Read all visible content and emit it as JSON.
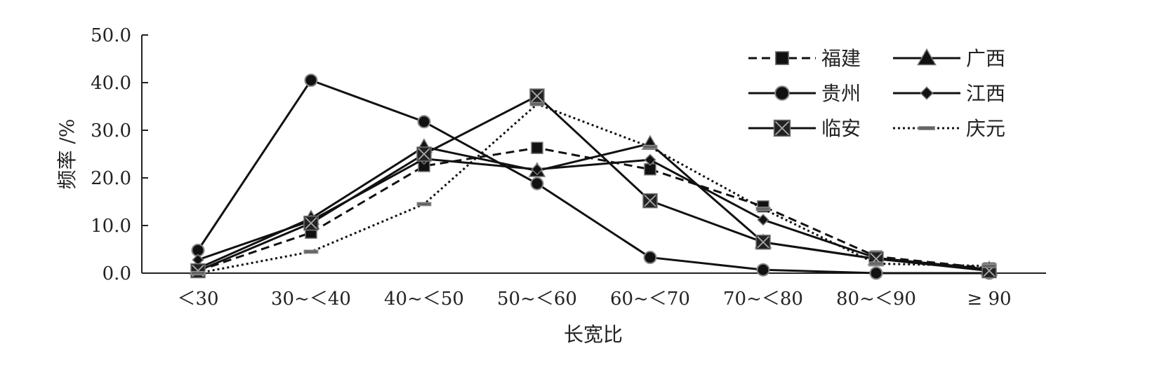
{
  "chart_data": {
    "type": "line",
    "title": "",
    "xlabel": "长宽比",
    "ylabel": "频率 /%",
    "categories": [
      "＜30",
      "30~＜40",
      "40~＜50",
      "50~＜60",
      "60~＜70",
      "70~＜80",
      "80~＜90",
      "≥ 90"
    ],
    "y_ticks": [
      "0.0",
      "10.0",
      "20.0",
      "30.0",
      "40.0",
      "50.0"
    ],
    "ylim": [
      0,
      50
    ],
    "grid": false,
    "legend_position": "top-right",
    "series": [
      {
        "name": "福建",
        "line": "dashed",
        "marker": "square",
        "values": [
          0.5,
          8.5,
          22.5,
          26.3,
          21.8,
          14.0,
          3.5,
          1.0
        ]
      },
      {
        "name": "广西",
        "line": "solid",
        "marker": "triangle",
        "values": [
          1.0,
          11.5,
          26.5,
          21.5,
          27.2,
          6.5,
          3.0,
          0.8
        ]
      },
      {
        "name": "贵州",
        "line": "solid",
        "marker": "circle",
        "values": [
          4.8,
          40.5,
          31.8,
          18.8,
          3.3,
          0.7,
          0.0,
          0.0
        ]
      },
      {
        "name": "江西",
        "line": "solid",
        "marker": "diamond",
        "values": [
          2.8,
          11.0,
          24.0,
          21.8,
          23.8,
          11.2,
          3.2,
          0.8
        ]
      },
      {
        "name": "临安",
        "line": "solid",
        "marker": "boxx",
        "values": [
          0.5,
          10.5,
          25.0,
          37.2,
          15.2,
          6.5,
          3.0,
          0.5
        ]
      },
      {
        "name": "庆元",
        "line": "dotted",
        "marker": "dash",
        "values": [
          0.0,
          4.5,
          14.5,
          35.5,
          26.5,
          13.5,
          2.0,
          1.5
        ]
      }
    ]
  }
}
